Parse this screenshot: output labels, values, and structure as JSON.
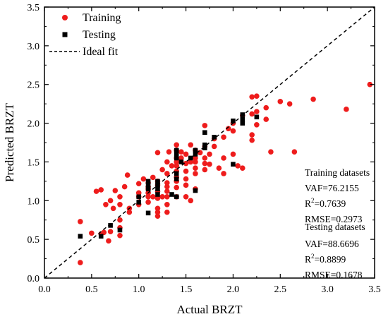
{
  "chart_data": {
    "type": "scatter",
    "xlabel": "Actual BRZT",
    "ylabel": "Predicted BRZT",
    "xlim": [
      0.0,
      3.5
    ],
    "ylim": [
      0.0,
      3.5
    ],
    "xticks": [
      "0.0",
      "0.5",
      "1.0",
      "1.5",
      "2.0",
      "2.5",
      "3.0",
      "3.5"
    ],
    "yticks": [
      "0.0",
      "0.5",
      "1.0",
      "1.5",
      "2.0",
      "2.5",
      "3.0",
      "3.5"
    ],
    "grid": false,
    "legend_position": "top-left",
    "colors": {
      "training": "#ee1c1c",
      "testing": "#000000",
      "ideal": "#000000"
    },
    "legend": [
      {
        "label": "Training",
        "marker": "circle"
      },
      {
        "label": "Testing",
        "marker": "square"
      },
      {
        "label": "Ideal fit",
        "marker": "dashed-line"
      }
    ],
    "stats": {
      "training_header": "Training datasets",
      "training_vaf": "VAF=76.2155",
      "training_r2_prefix": "R",
      "training_r2_sup": "2",
      "training_r2_value": "=0.7639",
      "training_rmse": "RMSE=0.2973",
      "testing_header": "Testing datasets",
      "testing_vaf": "VAF=88.6696",
      "testing_r2_prefix": "R",
      "testing_r2_sup": "2",
      "testing_r2_value": "=0.8899",
      "testing_rmse": "RMSE=0.1678"
    },
    "ideal_line": {
      "x": [
        0.0,
        3.5
      ],
      "y": [
        0.0,
        3.5
      ]
    },
    "series": [
      {
        "name": "Training",
        "marker": "circle",
        "points": [
          [
            0.38,
            0.73
          ],
          [
            0.38,
            0.2
          ],
          [
            0.5,
            0.58
          ],
          [
            0.55,
            1.12
          ],
          [
            0.6,
            1.14
          ],
          [
            0.6,
            0.57
          ],
          [
            0.63,
            0.59
          ],
          [
            0.65,
            0.95
          ],
          [
            0.68,
            0.48
          ],
          [
            0.7,
            1.0
          ],
          [
            0.7,
            0.6
          ],
          [
            0.73,
            0.9
          ],
          [
            0.75,
            1.13
          ],
          [
            0.8,
            1.05
          ],
          [
            0.8,
            0.95
          ],
          [
            0.8,
            0.75
          ],
          [
            0.8,
            0.65
          ],
          [
            0.8,
            0.55
          ],
          [
            0.85,
            1.18
          ],
          [
            0.88,
            1.33
          ],
          [
            0.9,
            0.9
          ],
          [
            0.9,
            0.85
          ],
          [
            1.0,
            1.22
          ],
          [
            1.0,
            1.1
          ],
          [
            1.0,
            1.05
          ],
          [
            1.0,
            0.95
          ],
          [
            1.05,
            1.28
          ],
          [
            1.1,
            1.23
          ],
          [
            1.1,
            1.18
          ],
          [
            1.1,
            1.15
          ],
          [
            1.1,
            1.1
          ],
          [
            1.1,
            1.05
          ],
          [
            1.1,
            0.98
          ],
          [
            1.15,
            1.3
          ],
          [
            1.15,
            1.05
          ],
          [
            1.2,
            1.62
          ],
          [
            1.2,
            1.25
          ],
          [
            1.2,
            1.2
          ],
          [
            1.2,
            1.12
          ],
          [
            1.2,
            1.03
          ],
          [
            1.2,
            0.9
          ],
          [
            1.2,
            0.85
          ],
          [
            1.2,
            0.8
          ],
          [
            1.25,
            1.4
          ],
          [
            1.25,
            1.05
          ],
          [
            1.3,
            1.5
          ],
          [
            1.3,
            1.35
          ],
          [
            1.3,
            1.23
          ],
          [
            1.3,
            1.18
          ],
          [
            1.3,
            1.12
          ],
          [
            1.3,
            1.05
          ],
          [
            1.3,
            0.95
          ],
          [
            1.3,
            0.85
          ],
          [
            1.32,
            1.63
          ],
          [
            1.35,
            1.45
          ],
          [
            1.4,
            1.72
          ],
          [
            1.4,
            1.65
          ],
          [
            1.4,
            1.55
          ],
          [
            1.4,
            1.5
          ],
          [
            1.4,
            1.45
          ],
          [
            1.4,
            1.38
          ],
          [
            1.4,
            1.3
          ],
          [
            1.4,
            1.25
          ],
          [
            1.4,
            1.17
          ],
          [
            1.4,
            1.05
          ],
          [
            1.45,
            1.63
          ],
          [
            1.45,
            1.55
          ],
          [
            1.5,
            1.6
          ],
          [
            1.5,
            1.48
          ],
          [
            1.5,
            1.38
          ],
          [
            1.5,
            1.28
          ],
          [
            1.5,
            1.2
          ],
          [
            1.5,
            1.05
          ],
          [
            1.55,
            1.72
          ],
          [
            1.55,
            1.5
          ],
          [
            1.55,
            1.0
          ],
          [
            1.6,
            1.65
          ],
          [
            1.6,
            1.55
          ],
          [
            1.6,
            1.5
          ],
          [
            1.6,
            1.42
          ],
          [
            1.6,
            1.35
          ],
          [
            1.6,
            1.15
          ],
          [
            1.65,
            1.62
          ],
          [
            1.7,
            1.97
          ],
          [
            1.7,
            1.7
          ],
          [
            1.7,
            1.55
          ],
          [
            1.7,
            1.48
          ],
          [
            1.7,
            1.4
          ],
          [
            1.75,
            1.6
          ],
          [
            1.75,
            1.47
          ],
          [
            1.8,
            1.8
          ],
          [
            1.8,
            1.7
          ],
          [
            1.85,
            1.42
          ],
          [
            1.9,
            1.82
          ],
          [
            1.9,
            1.55
          ],
          [
            1.9,
            1.35
          ],
          [
            1.95,
            1.93
          ],
          [
            2.0,
            2.0
          ],
          [
            2.0,
            1.9
          ],
          [
            2.0,
            1.6
          ],
          [
            2.05,
            1.45
          ],
          [
            2.1,
            2.1
          ],
          [
            2.1,
            1.42
          ],
          [
            2.2,
            2.34
          ],
          [
            2.2,
            2.12
          ],
          [
            2.2,
            1.85
          ],
          [
            2.2,
            1.78
          ],
          [
            2.25,
            2.35
          ],
          [
            2.25,
            2.15
          ],
          [
            2.25,
            1.98
          ],
          [
            2.35,
            2.2
          ],
          [
            2.35,
            2.05
          ],
          [
            2.4,
            1.63
          ],
          [
            2.5,
            2.28
          ],
          [
            2.6,
            2.25
          ],
          [
            2.65,
            1.63
          ],
          [
            2.85,
            2.31
          ],
          [
            3.2,
            2.18
          ],
          [
            3.45,
            2.5
          ]
        ]
      },
      {
        "name": "Testing",
        "marker": "square",
        "points": [
          [
            0.38,
            0.54
          ],
          [
            0.6,
            0.54
          ],
          [
            0.7,
            0.68
          ],
          [
            0.8,
            0.62
          ],
          [
            1.0,
            1.05
          ],
          [
            1.0,
            0.98
          ],
          [
            1.1,
            1.25
          ],
          [
            1.1,
            1.2
          ],
          [
            1.1,
            1.15
          ],
          [
            1.1,
            0.84
          ],
          [
            1.2,
            1.25
          ],
          [
            1.2,
            1.2
          ],
          [
            1.2,
            1.15
          ],
          [
            1.2,
            1.08
          ],
          [
            1.35,
            1.08
          ],
          [
            1.4,
            1.65
          ],
          [
            1.4,
            1.6
          ],
          [
            1.4,
            1.55
          ],
          [
            1.4,
            1.35
          ],
          [
            1.4,
            1.28
          ],
          [
            1.4,
            1.05
          ],
          [
            1.45,
            1.5
          ],
          [
            1.55,
            1.55
          ],
          [
            1.6,
            1.65
          ],
          [
            1.6,
            1.6
          ],
          [
            1.6,
            1.13
          ],
          [
            1.7,
            1.88
          ],
          [
            1.7,
            1.72
          ],
          [
            1.7,
            1.68
          ],
          [
            1.8,
            1.82
          ],
          [
            2.0,
            2.03
          ],
          [
            2.0,
            1.47
          ],
          [
            2.1,
            2.11
          ],
          [
            2.1,
            2.05
          ],
          [
            2.1,
            2.0
          ],
          [
            2.25,
            2.08
          ]
        ]
      }
    ]
  }
}
